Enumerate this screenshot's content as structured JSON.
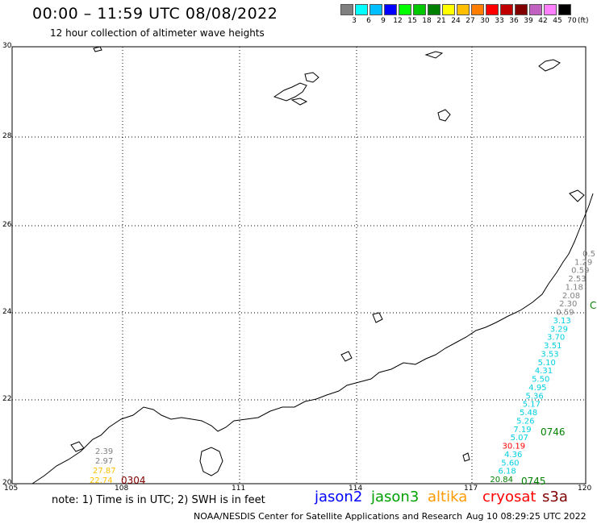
{
  "header": {
    "title": "00:00 – 11:59 UTC 08/08/2022",
    "subtitle": "12 hour collection of altimeter wave heights"
  },
  "scale": {
    "units": "(ft)",
    "bins": [
      {
        "label": "3",
        "color": "#808080"
      },
      {
        "label": "6",
        "color": "#00ffff"
      },
      {
        "label": "9",
        "color": "#00bfff"
      },
      {
        "label": "12",
        "color": "#0000ff"
      },
      {
        "label": "15",
        "color": "#00ff00"
      },
      {
        "label": "18",
        "color": "#00c800"
      },
      {
        "label": "21",
        "color": "#008000"
      },
      {
        "label": "24",
        "color": "#ffff00"
      },
      {
        "label": "27",
        "color": "#ffbf00"
      },
      {
        "label": "30",
        "color": "#ff8000"
      },
      {
        "label": "33",
        "color": "#ff0000"
      },
      {
        "label": "36",
        "color": "#c00000"
      },
      {
        "label": "39",
        "color": "#800000"
      },
      {
        "label": "42",
        "color": "#c060c0"
      },
      {
        "label": "45",
        "color": "#ff80ff"
      },
      {
        "label": "70",
        "color": "#000000"
      }
    ]
  },
  "axes": {
    "lat_labels": [
      "30",
      "28",
      "26",
      "24",
      "22",
      "20"
    ],
    "lon_labels": [
      "105",
      "108",
      "111",
      "114",
      "117",
      "120"
    ]
  },
  "observations": {
    "east_track": [
      {
        "text": "0.5",
        "color": "#808080"
      },
      {
        "text": "1.29",
        "color": "#808080"
      },
      {
        "text": "0.59",
        "color": "#808080"
      },
      {
        "text": "2.53",
        "color": "#808080"
      },
      {
        "text": "1.18",
        "color": "#808080"
      },
      {
        "text": "2.08",
        "color": "#808080"
      },
      {
        "text": "2.30",
        "color": "#808080"
      },
      {
        "text": "0.59",
        "color": "#808080"
      },
      {
        "text": "3.13",
        "color": "#00d0e0"
      },
      {
        "text": "3.29",
        "color": "#00d0e0"
      },
      {
        "text": "3.70",
        "color": "#00d0e0"
      },
      {
        "text": "3.51",
        "color": "#00d0e0"
      },
      {
        "text": "3.53",
        "color": "#00d0e0"
      },
      {
        "text": "5.10",
        "color": "#00d0e0"
      },
      {
        "text": "4.31",
        "color": "#00d0e0"
      },
      {
        "text": "5.50",
        "color": "#00d0e0"
      },
      {
        "text": "4.95",
        "color": "#00d0e0"
      },
      {
        "text": "5.36",
        "color": "#00d0e0"
      },
      {
        "text": "5.17",
        "color": "#00d0e0"
      },
      {
        "text": "5.48",
        "color": "#00d0e0"
      },
      {
        "text": "5.26",
        "color": "#00d0e0"
      },
      {
        "text": "7.19",
        "color": "#00d0e0"
      },
      {
        "text": "5.07",
        "color": "#00d0e0"
      },
      {
        "text": "30.19",
        "color": "#ff0000"
      },
      {
        "text": "4.36",
        "color": "#00d0e0"
      },
      {
        "text": "5.60",
        "color": "#00d0e0"
      },
      {
        "text": "6.18",
        "color": "#00d0e0"
      },
      {
        "text": "20.84",
        "color": "#008000"
      }
    ],
    "time_tags": [
      {
        "text": "0746",
        "color": "#008000"
      },
      {
        "text": "0745",
        "color": "#008000"
      },
      {
        "text": "C",
        "color": "#008000"
      },
      {
        "text": "0304",
        "color": "#800000"
      }
    ],
    "west_track": [
      {
        "text": "2.39",
        "color": "#808080"
      },
      {
        "text": "2.97",
        "color": "#808080"
      },
      {
        "text": "27.87",
        "color": "#ffbf00"
      },
      {
        "text": "22.74",
        "color": "#ffbf00"
      }
    ]
  },
  "footer": {
    "note": "note:  1) Time is in UTC;  2) SWH is in feet",
    "satellites": [
      {
        "name": "jason2",
        "color": "#0000ff"
      },
      {
        "name": "jason3",
        "color": "#00a000"
      },
      {
        "name": "altika",
        "color": "#ff9900"
      },
      {
        "name": "cryosat",
        "color": "#ff0000"
      },
      {
        "name": "s3a",
        "color": "#800000"
      }
    ],
    "credit": "NOAA/NESDIS Center for Satellite Applications and Research",
    "timestamp": "Aug 10 08:29:25 UTC 2022"
  }
}
